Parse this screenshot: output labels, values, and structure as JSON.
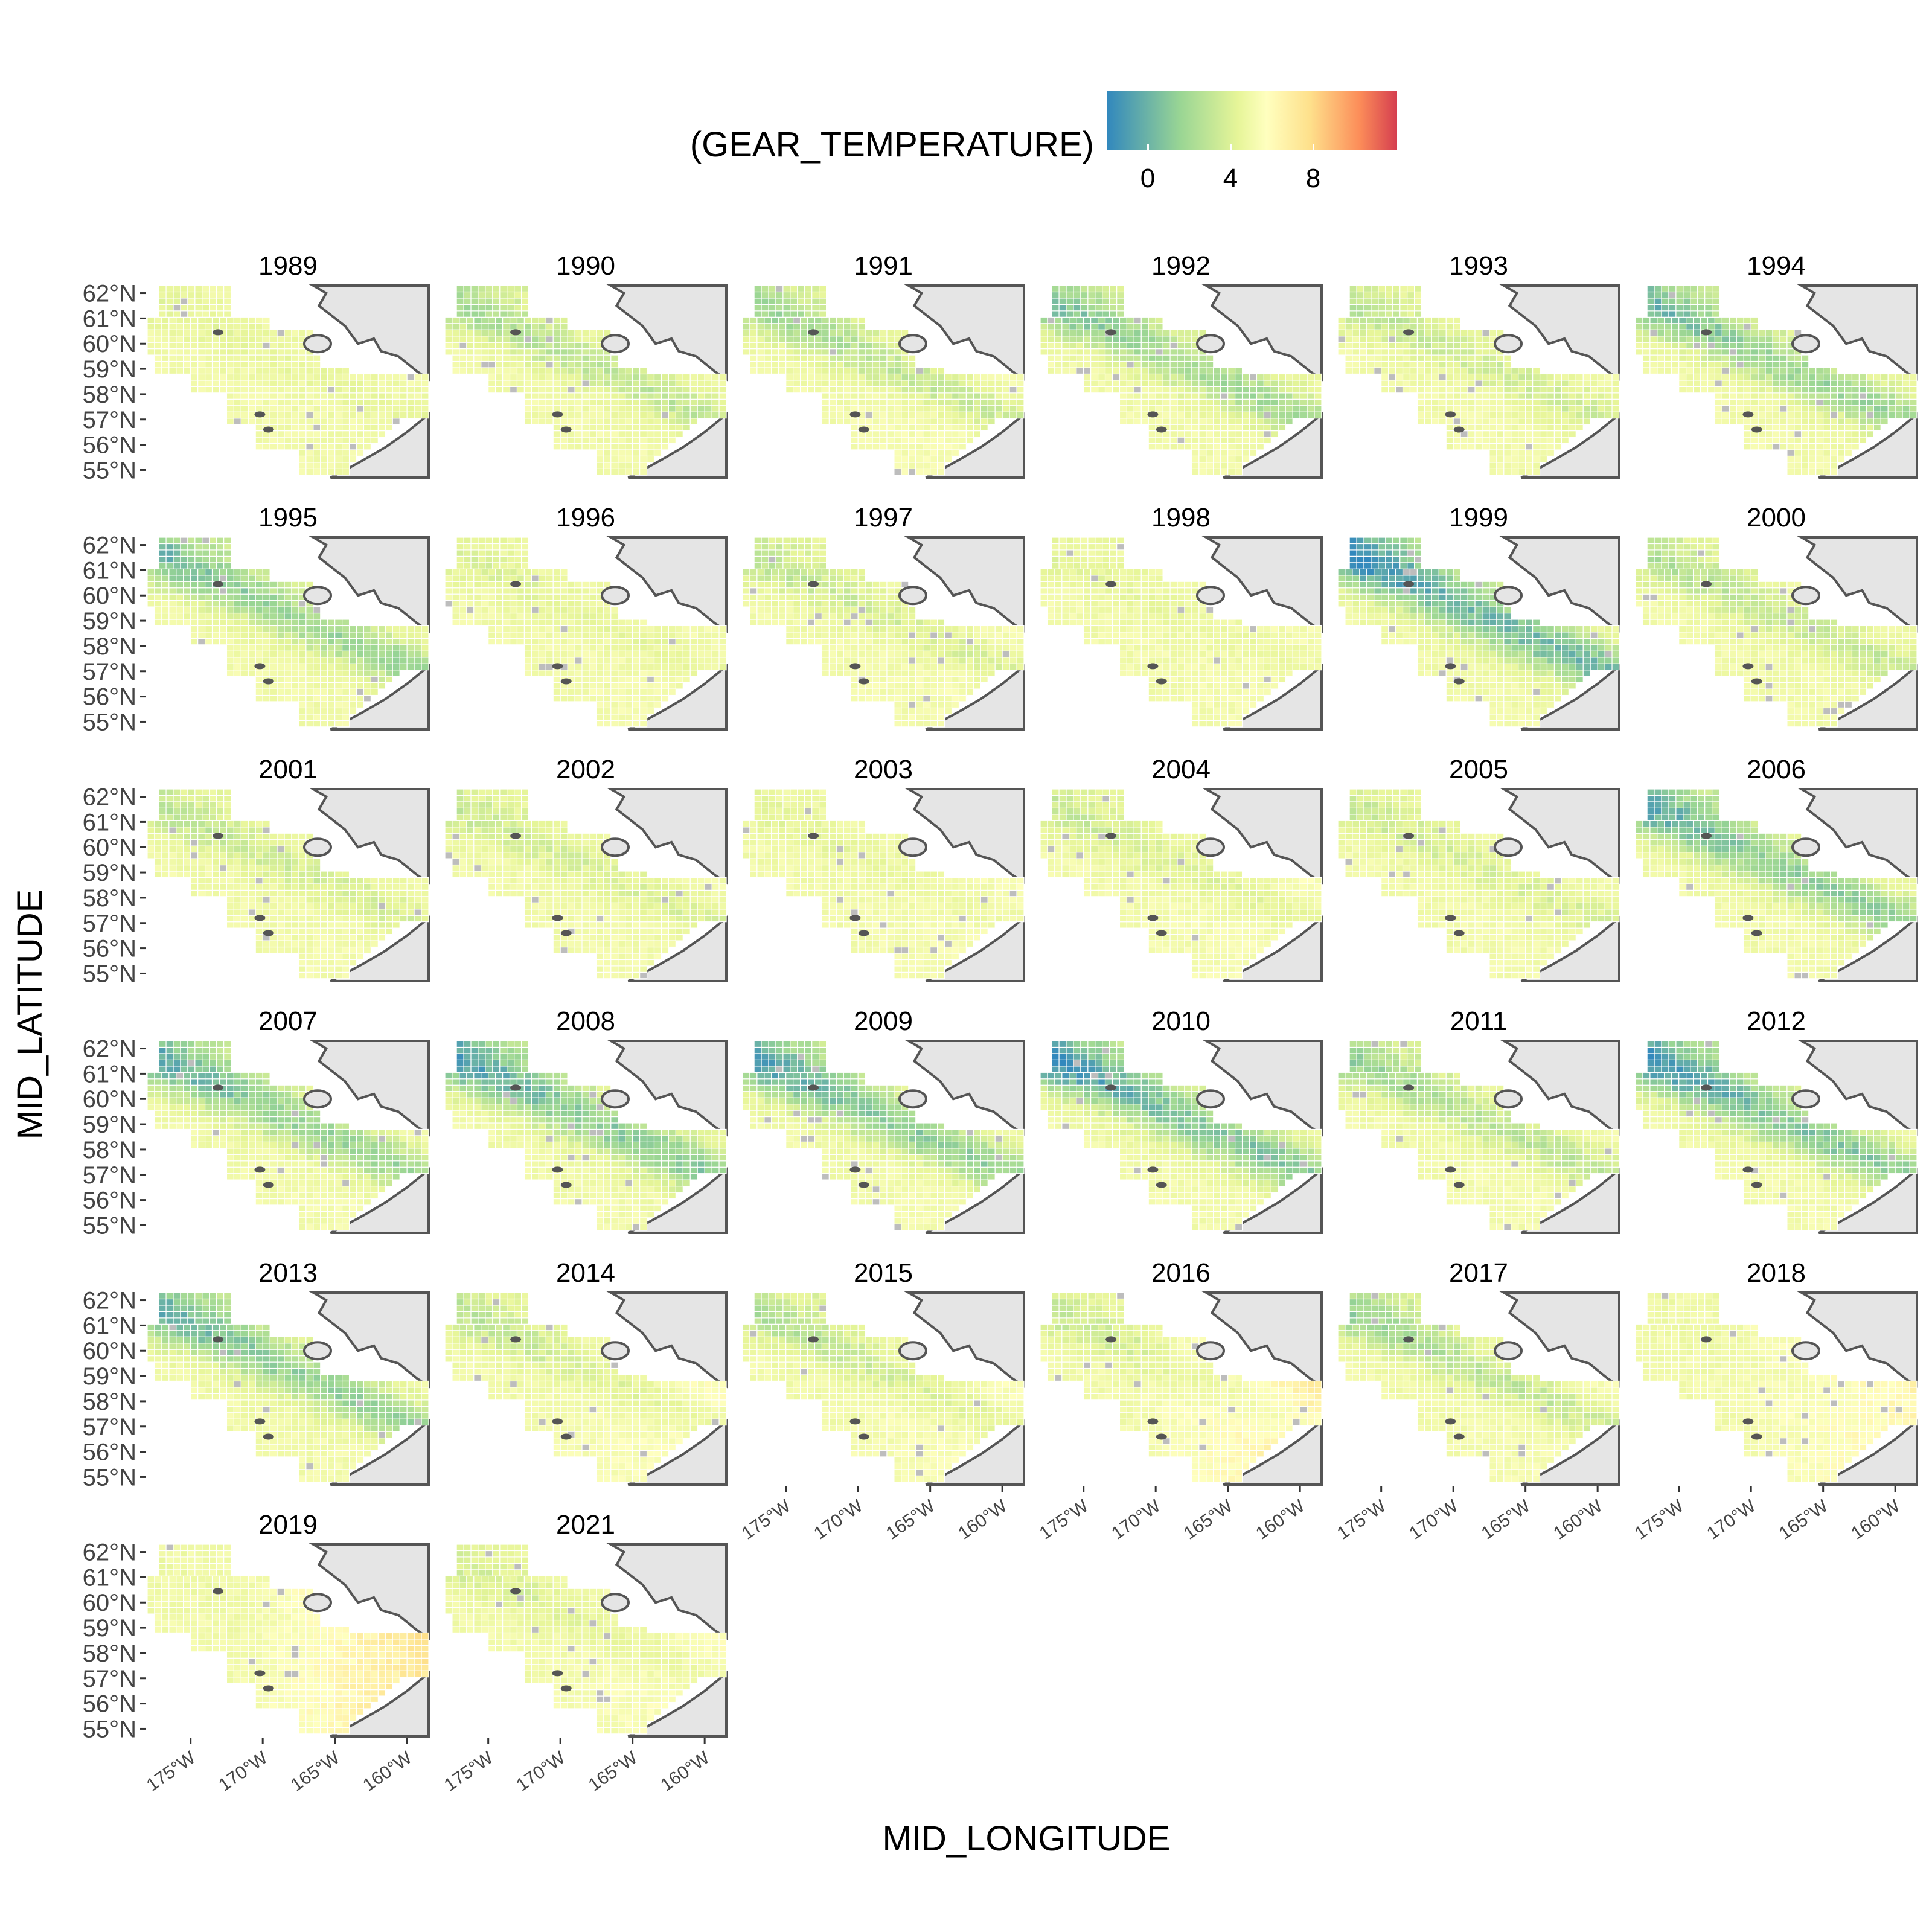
{
  "legend": {
    "title": "(GEAR_TEMPERATURE)",
    "ticks": [
      {
        "value": 0,
        "label": "0"
      },
      {
        "value": 4,
        "label": "4"
      },
      {
        "value": 8,
        "label": "8"
      }
    ],
    "range": [
      -2,
      12
    ],
    "colors": [
      "#3288bd",
      "#99d594",
      "#e6f598",
      "#ffffbf",
      "#fee08b",
      "#fc8d59",
      "#d53e4f"
    ]
  },
  "colors": {
    "missing": "#bdbdbd",
    "land": "#e5e5e5",
    "coastline": "#555555",
    "cell_border": "#ffffff"
  },
  "chart_data": {
    "type": "heatmap",
    "xlabel": "MID_LONGITUDE",
    "ylabel": "MID_LATITUDE",
    "ylim": [
      54.7,
      62.3
    ],
    "xlim": [
      -178,
      -158.5
    ],
    "y_ticks": [
      {
        "value": 55,
        "label": "55°N"
      },
      {
        "value": 56,
        "label": "56°N"
      },
      {
        "value": 57,
        "label": "57°N"
      },
      {
        "value": 58,
        "label": "58°N"
      },
      {
        "value": 59,
        "label": "59°N"
      },
      {
        "value": 60,
        "label": "60°N"
      },
      {
        "value": 61,
        "label": "61°N"
      },
      {
        "value": 62,
        "label": "62°N"
      }
    ],
    "x_ticks": [
      {
        "value": -175,
        "label": "175°W"
      },
      {
        "value": -170,
        "label": "170°W"
      },
      {
        "value": -165,
        "label": "165°W"
      },
      {
        "value": -160,
        "label": "160°W"
      }
    ],
    "grid": false,
    "facets": [
      {
        "label": "1989",
        "cold_extent": 0.15,
        "warm_anomaly": 0.0
      },
      {
        "label": "1990",
        "cold_extent": 0.45,
        "warm_anomaly": 0.0
      },
      {
        "label": "1991",
        "cold_extent": 0.5,
        "warm_anomaly": 0.2
      },
      {
        "label": "1992",
        "cold_extent": 0.6,
        "warm_anomaly": 0.0
      },
      {
        "label": "1993",
        "cold_extent": 0.35,
        "warm_anomaly": 0.0
      },
      {
        "label": "1994",
        "cold_extent": 0.65,
        "warm_anomaly": 0.0
      },
      {
        "label": "1995",
        "cold_extent": 0.65,
        "warm_anomaly": 0.0
      },
      {
        "label": "1996",
        "cold_extent": 0.2,
        "warm_anomaly": 0.1
      },
      {
        "label": "1997",
        "cold_extent": 0.35,
        "warm_anomaly": 0.15
      },
      {
        "label": "1998",
        "cold_extent": 0.15,
        "warm_anomaly": 0.1
      },
      {
        "label": "1999",
        "cold_extent": 0.85,
        "warm_anomaly": 0.0
      },
      {
        "label": "2000",
        "cold_extent": 0.4,
        "warm_anomaly": 0.0
      },
      {
        "label": "2001",
        "cold_extent": 0.35,
        "warm_anomaly": 0.05
      },
      {
        "label": "2002",
        "cold_extent": 0.3,
        "warm_anomaly": 0.05
      },
      {
        "label": "2003",
        "cold_extent": 0.15,
        "warm_anomaly": 0.15
      },
      {
        "label": "2004",
        "cold_extent": 0.3,
        "warm_anomaly": 0.2
      },
      {
        "label": "2005",
        "cold_extent": 0.3,
        "warm_anomaly": 0.05
      },
      {
        "label": "2006",
        "cold_extent": 0.7,
        "warm_anomaly": 0.0
      },
      {
        "label": "2007",
        "cold_extent": 0.7,
        "warm_anomaly": 0.1
      },
      {
        "label": "2008",
        "cold_extent": 0.75,
        "warm_anomaly": 0.0
      },
      {
        "label": "2009",
        "cold_extent": 0.75,
        "warm_anomaly": 0.1
      },
      {
        "label": "2010",
        "cold_extent": 0.8,
        "warm_anomaly": 0.05
      },
      {
        "label": "2011",
        "cold_extent": 0.5,
        "warm_anomaly": 0.1
      },
      {
        "label": "2012",
        "cold_extent": 0.8,
        "warm_anomaly": 0.1
      },
      {
        "label": "2013",
        "cold_extent": 0.7,
        "warm_anomaly": 0.05
      },
      {
        "label": "2014",
        "cold_extent": 0.35,
        "warm_anomaly": 0.35
      },
      {
        "label": "2015",
        "cold_extent": 0.4,
        "warm_anomaly": 0.3
      },
      {
        "label": "2016",
        "cold_extent": 0.3,
        "warm_anomaly": 0.7
      },
      {
        "label": "2017",
        "cold_extent": 0.5,
        "warm_anomaly": 0.2
      },
      {
        "label": "2018",
        "cold_extent": 0.05,
        "warm_anomaly": 0.5
      },
      {
        "label": "2019",
        "cold_extent": 0.05,
        "warm_anomaly": 0.85
      },
      {
        "label": "2021",
        "cold_extent": 0.25,
        "warm_anomaly": 0.3
      }
    ]
  }
}
